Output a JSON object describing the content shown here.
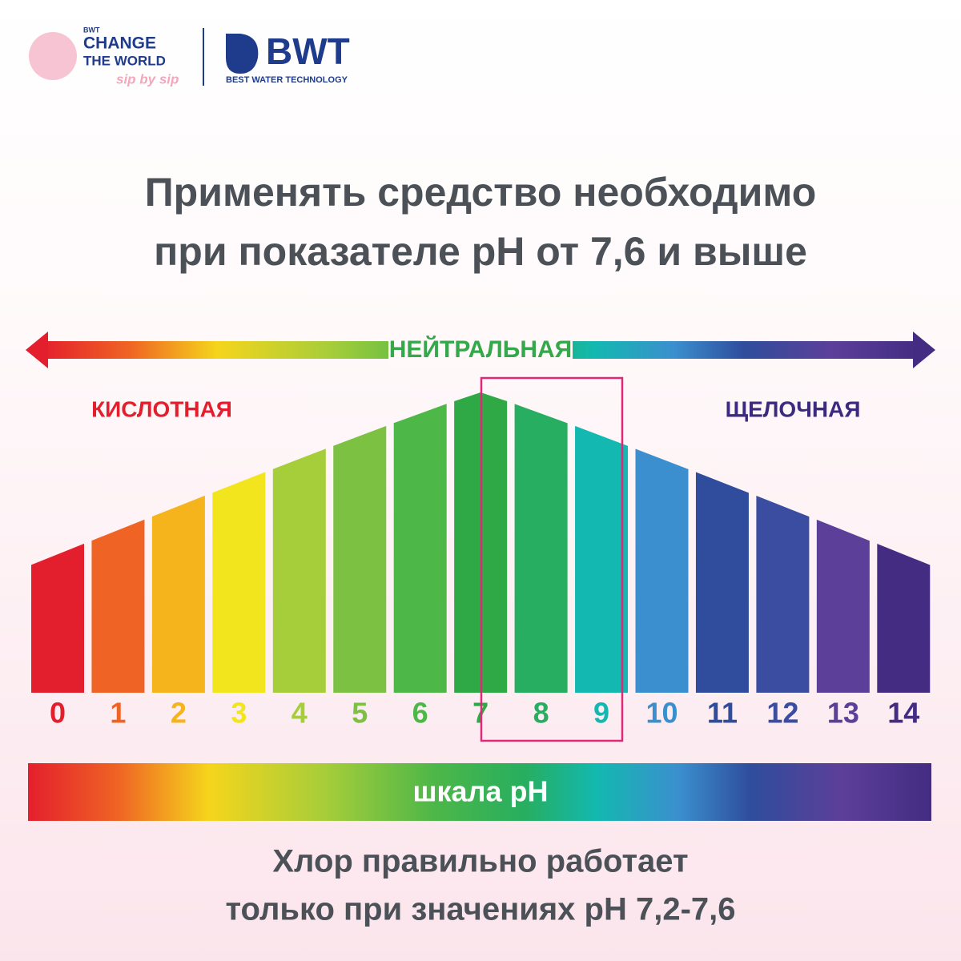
{
  "logo": {
    "badge": "BWT",
    "line1": "CHANGE",
    "line2": "THE WORLD",
    "tagline": "sip by sip",
    "brand": "BWT",
    "brand_subtitle": "BEST WATER TECHNOLOGY"
  },
  "title": [
    "Применять средство необходимо",
    "при показателе pH от 7,6 и выше"
  ],
  "scale": {
    "neutral": "НЕЙТРАЛЬНАЯ",
    "acidic": "КИСЛОТНАЯ",
    "alkaline": "ЩЕЛОЧНАЯ",
    "levels": [
      {
        "label": "0",
        "color": "#e41f2d"
      },
      {
        "label": "1",
        "color": "#ef6424"
      },
      {
        "label": "2",
        "color": "#f5b41c"
      },
      {
        "label": "3",
        "color": "#f2e51d"
      },
      {
        "label": "4",
        "color": "#a6cd3a"
      },
      {
        "label": "5",
        "color": "#7cc142"
      },
      {
        "label": "6",
        "color": "#4db748"
      },
      {
        "label": "7",
        "color": "#2fa846"
      },
      {
        "label": "8",
        "color": "#27ae60"
      },
      {
        "label": "9",
        "color": "#13b8b0"
      },
      {
        "label": "10",
        "color": "#3b8fce"
      },
      {
        "label": "11",
        "color": "#2f4d9c"
      },
      {
        "label": "12",
        "color": "#3b4da0"
      },
      {
        "label": "13",
        "color": "#5c3f99"
      },
      {
        "label": "14",
        "color": "#432c82"
      }
    ],
    "bar_label": "шкала pH"
  },
  "footer": [
    "Хлор правильно работает",
    "только при значениях pH 7,2-7,6"
  ]
}
